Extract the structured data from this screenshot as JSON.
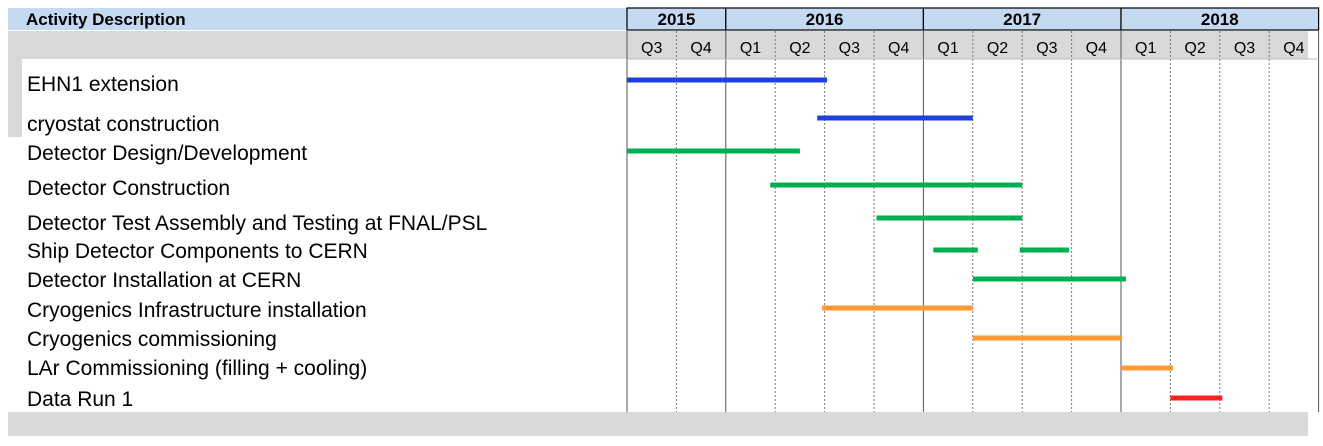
{
  "chart_data": {
    "type": "gantt",
    "header_label": "Activity Description",
    "years": [
      "2015",
      "2016",
      "2017",
      "2018"
    ],
    "quarters": [
      "Q3",
      "Q4",
      "Q1",
      "Q2",
      "Q3",
      "Q4",
      "Q1",
      "Q2",
      "Q3",
      "Q4",
      "Q1",
      "Q2",
      "Q3",
      "Q4"
    ],
    "colors": {
      "header_bg": "#c5d9f1",
      "band_gray": "#d9d9d9",
      "blue": "#1f3fe0",
      "green": "#00b050",
      "orange": "#ff9933",
      "red": "#ff2020"
    },
    "tasks": [
      {
        "name": "EHN1 extension",
        "start": "2015-Q3",
        "end": "2016-Q2 late",
        "start_q": 0.0,
        "end_q": 4.05,
        "color": "blue"
      },
      {
        "name": "cryostat construction",
        "start": "2016-Q2",
        "end": "2016-Q4",
        "start_q": 3.85,
        "end_q": 7.0,
        "color": "blue"
      },
      {
        "name": "Detector Design/Development",
        "start": "2015-Q3",
        "end": "2016-Q2",
        "start_q": 0.0,
        "end_q": 3.5,
        "color": "green"
      },
      {
        "name": "Detector Construction",
        "start": "2016-Q1",
        "end": "2017-Q2",
        "start_q": 2.9,
        "end_q": 8.0,
        "color": "green"
      },
      {
        "name": "Detector Test Assembly and Testing at FNAL/PSL",
        "start": "2016-Q3",
        "end": "2017-Q2",
        "start_q": 5.05,
        "end_q": 8.0,
        "color": "green"
      },
      {
        "name": "Ship Detector Components to CERN",
        "start_q": 6.2,
        "end_q": 7.1,
        "start_q2": 7.95,
        "end_q2": 8.95,
        "color": "green"
      },
      {
        "name": "Detector Installation at CERN",
        "start": "2017-Q1",
        "end": "2017-Q4",
        "start_q": 7.0,
        "end_q": 10.1,
        "color": "green"
      },
      {
        "name": "Cryogenics Infrastructure installation",
        "start": "2016-Q2",
        "end": "2016-Q4",
        "start_q": 3.95,
        "end_q": 7.0,
        "color": "orange"
      },
      {
        "name": "Cryogenics commissioning",
        "start": "2017-Q1",
        "end": "2017-Q4",
        "start_q": 7.0,
        "end_q": 10.0,
        "color": "orange"
      },
      {
        "name": "LAr Commissioning (filling + cooling)",
        "start": "2018-Q1",
        "end": "2018-Q1",
        "start_q": 10.0,
        "end_q": 11.05,
        "color": "orange"
      },
      {
        "name": "Data Run 1",
        "start": "2018-Q1",
        "end": "2018-Q2",
        "start_q": 11.0,
        "end_q": 12.05,
        "color": "red"
      }
    ]
  }
}
